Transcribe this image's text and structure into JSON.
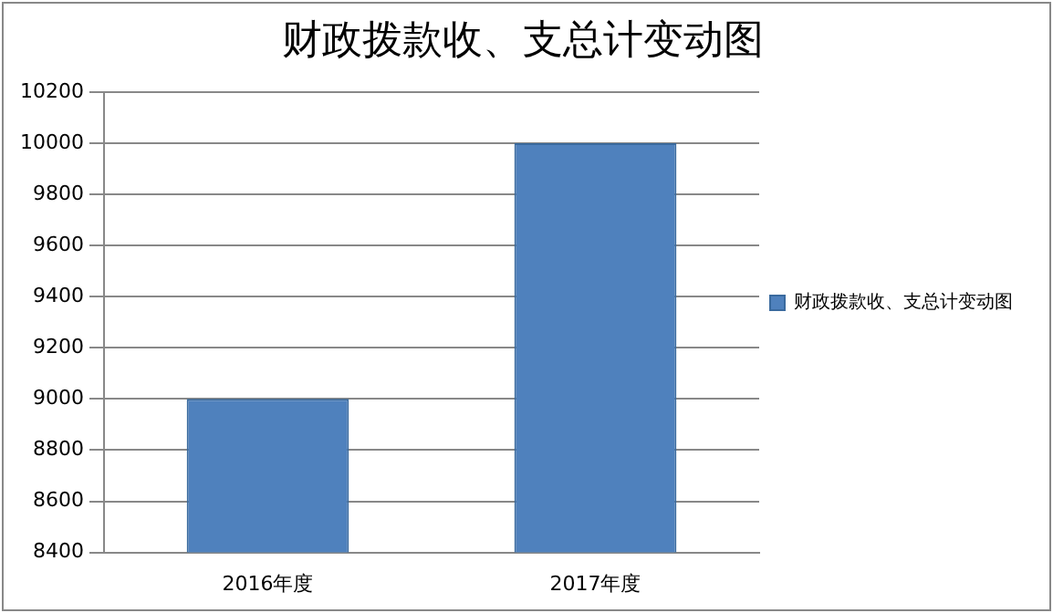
{
  "chart_data": {
    "type": "bar",
    "title": "财政拨款收、支总计变动图",
    "categories": [
      "2016年度",
      "2017年度"
    ],
    "series": [
      {
        "name": "财政拨款收、支总计变动图",
        "color": "#4f81bd",
        "values": [
          9000,
          10000
        ]
      }
    ],
    "ylim": [
      8400,
      10200
    ],
    "yticks": [
      8400,
      8600,
      8800,
      9000,
      9200,
      9400,
      9600,
      9800,
      10000,
      10200
    ],
    "grid": "y",
    "legend": "right"
  }
}
